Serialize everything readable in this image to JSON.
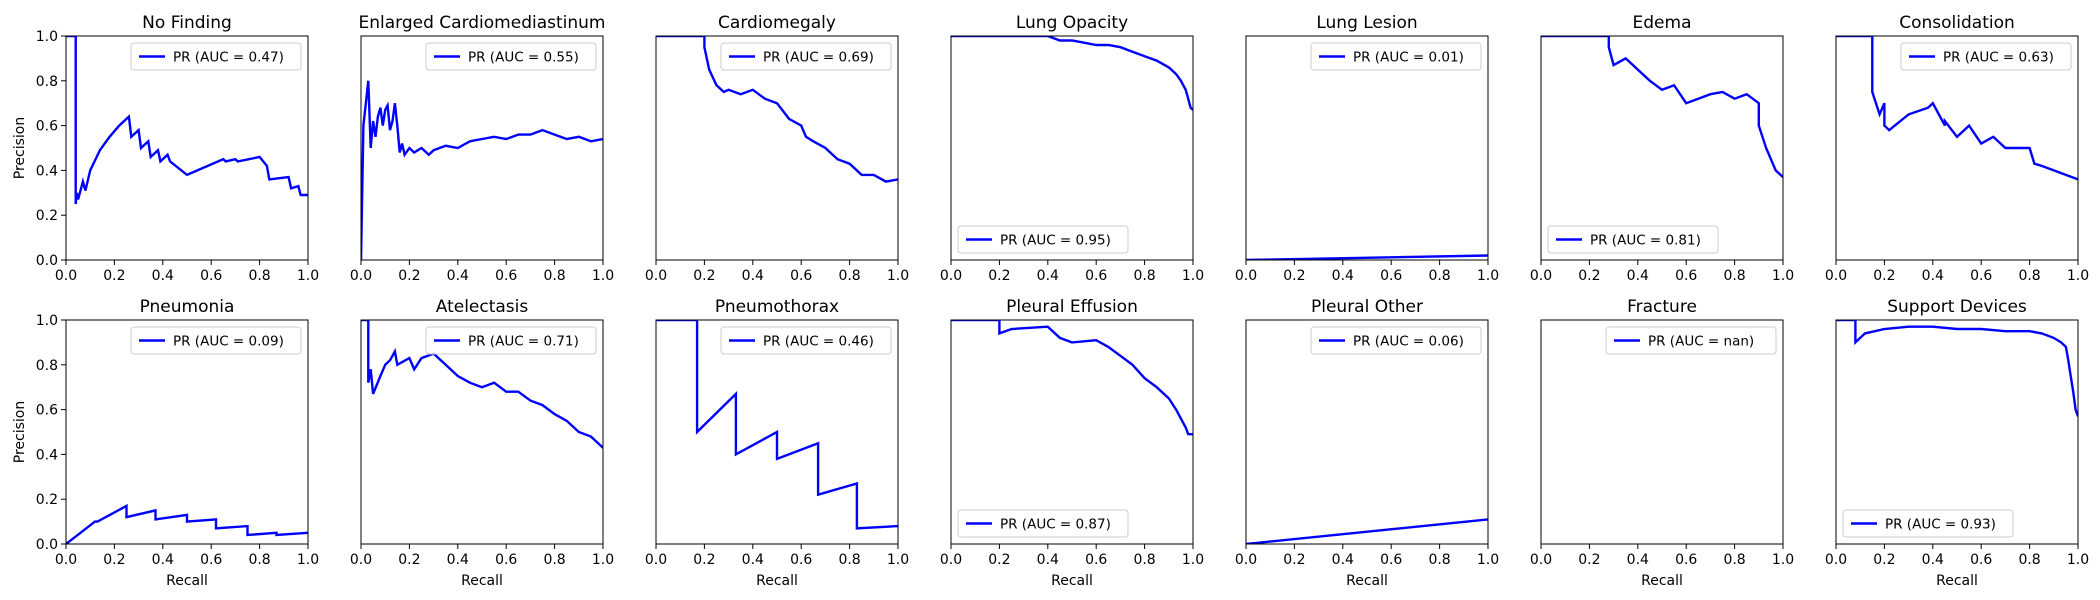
{
  "figure": {
    "background": "#ffffff",
    "line_color": "#0000ff"
  },
  "chart_data": [
    {
      "type": "line",
      "title": "No Finding",
      "xlabel": "",
      "ylabel": "Precision",
      "xlim": [
        0,
        1
      ],
      "ylim": [
        0,
        1
      ],
      "xticks": [
        "0.0",
        "0.2",
        "0.4",
        "0.6",
        "0.8",
        "1.0"
      ],
      "yticks": [
        "0.0",
        "0.2",
        "0.4",
        "0.6",
        "0.8",
        "1.0"
      ],
      "legend": {
        "label": "PR (AUC = 0.47)",
        "position": "upper right"
      },
      "series": [
        {
          "x": [
            0.0,
            0.04,
            0.04,
            0.045,
            0.05,
            0.07,
            0.08,
            0.1,
            0.14,
            0.18,
            0.22,
            0.26,
            0.27,
            0.3,
            0.31,
            0.34,
            0.35,
            0.38,
            0.39,
            0.42,
            0.43,
            0.5,
            0.5,
            0.65,
            0.66,
            0.7,
            0.71,
            0.8,
            0.83,
            0.84,
            0.92,
            0.93,
            0.96,
            0.97,
            1.0
          ],
          "y": [
            1.0,
            1.0,
            0.25,
            0.3,
            0.27,
            0.35,
            0.31,
            0.4,
            0.49,
            0.55,
            0.6,
            0.64,
            0.55,
            0.58,
            0.5,
            0.53,
            0.46,
            0.49,
            0.44,
            0.47,
            0.44,
            0.38,
            0.38,
            0.45,
            0.44,
            0.45,
            0.44,
            0.46,
            0.42,
            0.36,
            0.37,
            0.32,
            0.33,
            0.29,
            0.29
          ]
        }
      ]
    },
    {
      "type": "line",
      "title": "Enlarged Cardiomediastinum",
      "xlabel": "",
      "ylabel": "",
      "xlim": [
        0,
        1
      ],
      "ylim": [
        0,
        1
      ],
      "xticks": [
        "0.0",
        "0.2",
        "0.4",
        "0.6",
        "0.8",
        "1.0"
      ],
      "yticks": [],
      "legend": {
        "label": "PR (AUC = 0.55)",
        "position": "upper right"
      },
      "series": [
        {
          "x": [
            0.0,
            0.01,
            0.03,
            0.04,
            0.05,
            0.06,
            0.07,
            0.08,
            0.09,
            0.1,
            0.11,
            0.12,
            0.13,
            0.14,
            0.15,
            0.16,
            0.17,
            0.18,
            0.2,
            0.22,
            0.25,
            0.28,
            0.3,
            0.35,
            0.4,
            0.45,
            0.5,
            0.55,
            0.6,
            0.65,
            0.7,
            0.75,
            0.8,
            0.85,
            0.9,
            0.95,
            1.0
          ],
          "y": [
            0.0,
            0.6,
            0.8,
            0.5,
            0.62,
            0.55,
            0.64,
            0.68,
            0.6,
            0.67,
            0.69,
            0.58,
            0.62,
            0.7,
            0.6,
            0.48,
            0.52,
            0.47,
            0.5,
            0.48,
            0.5,
            0.47,
            0.49,
            0.51,
            0.5,
            0.53,
            0.54,
            0.55,
            0.54,
            0.56,
            0.56,
            0.58,
            0.56,
            0.54,
            0.55,
            0.53,
            0.54
          ]
        }
      ]
    },
    {
      "type": "line",
      "title": "Cardiomegaly",
      "xlabel": "",
      "ylabel": "",
      "xlim": [
        0,
        1
      ],
      "ylim": [
        0,
        1
      ],
      "xticks": [
        "0.0",
        "0.2",
        "0.4",
        "0.6",
        "0.8",
        "1.0"
      ],
      "yticks": [],
      "legend": {
        "label": "PR (AUC = 0.69)",
        "position": "upper right"
      },
      "series": [
        {
          "x": [
            0.0,
            0.2,
            0.2,
            0.22,
            0.25,
            0.28,
            0.3,
            0.35,
            0.4,
            0.45,
            0.5,
            0.55,
            0.6,
            0.62,
            0.65,
            0.7,
            0.75,
            0.8,
            0.85,
            0.9,
            0.95,
            1.0
          ],
          "y": [
            1.0,
            1.0,
            0.95,
            0.85,
            0.78,
            0.75,
            0.76,
            0.74,
            0.76,
            0.72,
            0.7,
            0.63,
            0.6,
            0.55,
            0.53,
            0.5,
            0.45,
            0.43,
            0.38,
            0.38,
            0.35,
            0.36
          ]
        }
      ]
    },
    {
      "type": "line",
      "title": "Lung Opacity",
      "xlabel": "",
      "ylabel": "",
      "xlim": [
        0,
        1
      ],
      "ylim": [
        0,
        1
      ],
      "xticks": [
        "0.0",
        "0.2",
        "0.4",
        "0.6",
        "0.8",
        "1.0"
      ],
      "yticks": [],
      "legend": {
        "label": "PR (AUC = 0.95)",
        "position": "lower left"
      },
      "series": [
        {
          "x": [
            0.0,
            0.4,
            0.45,
            0.5,
            0.55,
            0.6,
            0.65,
            0.7,
            0.75,
            0.8,
            0.85,
            0.9,
            0.93,
            0.95,
            0.97,
            0.98,
            0.99,
            1.0
          ],
          "y": [
            1.0,
            1.0,
            0.98,
            0.98,
            0.97,
            0.96,
            0.96,
            0.95,
            0.93,
            0.91,
            0.89,
            0.86,
            0.83,
            0.8,
            0.76,
            0.72,
            0.68,
            0.67
          ]
        }
      ]
    },
    {
      "type": "line",
      "title": "Lung Lesion",
      "xlabel": "",
      "ylabel": "",
      "xlim": [
        0,
        1
      ],
      "ylim": [
        0,
        1
      ],
      "xticks": [
        "0.0",
        "0.2",
        "0.4",
        "0.6",
        "0.8",
        "1.0"
      ],
      "yticks": [],
      "legend": {
        "label": "PR (AUC = 0.01)",
        "position": "upper right"
      },
      "series": [
        {
          "x": [
            0.0,
            1.0
          ],
          "y": [
            0.0,
            0.02
          ]
        }
      ]
    },
    {
      "type": "line",
      "title": "Edema",
      "xlabel": "",
      "ylabel": "",
      "xlim": [
        0,
        1
      ],
      "ylim": [
        0,
        1
      ],
      "xticks": [
        "0.0",
        "0.2",
        "0.4",
        "0.6",
        "0.8",
        "1.0"
      ],
      "yticks": [],
      "legend": {
        "label": "PR (AUC = 0.81)",
        "position": "lower left"
      },
      "series": [
        {
          "x": [
            0.0,
            0.28,
            0.28,
            0.3,
            0.35,
            0.4,
            0.45,
            0.5,
            0.55,
            0.6,
            0.65,
            0.7,
            0.75,
            0.8,
            0.85,
            0.9,
            0.9,
            0.93,
            0.95,
            0.97,
            1.0
          ],
          "y": [
            1.0,
            1.0,
            0.95,
            0.87,
            0.9,
            0.85,
            0.8,
            0.76,
            0.78,
            0.7,
            0.72,
            0.74,
            0.75,
            0.72,
            0.74,
            0.7,
            0.6,
            0.5,
            0.45,
            0.4,
            0.37
          ]
        }
      ]
    },
    {
      "type": "line",
      "title": "Consolidation",
      "xlabel": "",
      "ylabel": "",
      "xlim": [
        0,
        1
      ],
      "ylim": [
        0,
        1
      ],
      "xticks": [
        "0.0",
        "0.2",
        "0.4",
        "0.6",
        "0.8",
        "1.0"
      ],
      "yticks": [],
      "legend": {
        "label": "PR (AUC = 0.63)",
        "position": "upper right"
      },
      "series": [
        {
          "x": [
            0.0,
            0.15,
            0.15,
            0.18,
            0.2,
            0.2,
            0.22,
            0.3,
            0.38,
            0.4,
            0.45,
            0.45,
            0.5,
            0.55,
            0.6,
            0.65,
            0.7,
            0.8,
            0.82,
            0.85,
            0.9,
            0.95,
            1.0
          ],
          "y": [
            1.0,
            1.0,
            0.75,
            0.65,
            0.7,
            0.6,
            0.58,
            0.65,
            0.68,
            0.7,
            0.6,
            0.62,
            0.55,
            0.6,
            0.52,
            0.55,
            0.5,
            0.5,
            0.43,
            0.42,
            0.4,
            0.38,
            0.36
          ]
        }
      ]
    },
    {
      "type": "line",
      "title": "Pneumonia",
      "xlabel": "Recall",
      "ylabel": "Precision",
      "xlim": [
        0,
        1
      ],
      "ylim": [
        0,
        1
      ],
      "xticks": [
        "0.0",
        "0.2",
        "0.4",
        "0.6",
        "0.8",
        "1.0"
      ],
      "yticks": [
        "0.0",
        "0.2",
        "0.4",
        "0.6",
        "0.8",
        "1.0"
      ],
      "legend": {
        "label": "PR (AUC = 0.09)",
        "position": "upper right"
      },
      "series": [
        {
          "x": [
            0.0,
            0.12,
            0.13,
            0.25,
            0.25,
            0.37,
            0.37,
            0.5,
            0.5,
            0.62,
            0.62,
            0.75,
            0.75,
            0.87,
            0.87,
            1.0
          ],
          "y": [
            0.0,
            0.1,
            0.1,
            0.17,
            0.12,
            0.15,
            0.11,
            0.13,
            0.1,
            0.11,
            0.07,
            0.08,
            0.04,
            0.05,
            0.04,
            0.05
          ]
        }
      ]
    },
    {
      "type": "line",
      "title": "Atelectasis",
      "xlabel": "Recall",
      "ylabel": "",
      "xlim": [
        0,
        1
      ],
      "ylim": [
        0,
        1
      ],
      "xticks": [
        "0.0",
        "0.2",
        "0.4",
        "0.6",
        "0.8",
        "1.0"
      ],
      "yticks": [],
      "legend": {
        "label": "PR (AUC = 0.71)",
        "position": "upper right"
      },
      "series": [
        {
          "x": [
            0.0,
            0.03,
            0.03,
            0.04,
            0.05,
            0.08,
            0.1,
            0.12,
            0.14,
            0.15,
            0.2,
            0.22,
            0.25,
            0.3,
            0.35,
            0.4,
            0.45,
            0.5,
            0.55,
            0.6,
            0.65,
            0.7,
            0.75,
            0.8,
            0.85,
            0.9,
            0.95,
            1.0
          ],
          "y": [
            1.0,
            1.0,
            0.72,
            0.78,
            0.67,
            0.75,
            0.8,
            0.82,
            0.86,
            0.8,
            0.83,
            0.78,
            0.83,
            0.85,
            0.8,
            0.75,
            0.72,
            0.7,
            0.72,
            0.68,
            0.68,
            0.64,
            0.62,
            0.58,
            0.55,
            0.5,
            0.48,
            0.43
          ]
        }
      ]
    },
    {
      "type": "line",
      "title": "Pneumothorax",
      "xlabel": "Recall",
      "ylabel": "",
      "xlim": [
        0,
        1
      ],
      "ylim": [
        0,
        1
      ],
      "xticks": [
        "0.0",
        "0.2",
        "0.4",
        "0.6",
        "0.8",
        "1.0"
      ],
      "yticks": [],
      "legend": {
        "label": "PR (AUC = 0.46)",
        "position": "upper right"
      },
      "series": [
        {
          "x": [
            0.0,
            0.17,
            0.17,
            0.33,
            0.33,
            0.5,
            0.5,
            0.67,
            0.67,
            0.83,
            0.83,
            1.0
          ],
          "y": [
            1.0,
            1.0,
            0.5,
            0.67,
            0.4,
            0.5,
            0.38,
            0.45,
            0.22,
            0.27,
            0.07,
            0.08
          ]
        }
      ]
    },
    {
      "type": "line",
      "title": "Pleural Effusion",
      "xlabel": "Recall",
      "ylabel": "",
      "xlim": [
        0,
        1
      ],
      "ylim": [
        0,
        1
      ],
      "xticks": [
        "0.0",
        "0.2",
        "0.4",
        "0.6",
        "0.8",
        "1.0"
      ],
      "yticks": [],
      "legend": {
        "label": "PR (AUC = 0.87)",
        "position": "lower left"
      },
      "series": [
        {
          "x": [
            0.0,
            0.2,
            0.2,
            0.25,
            0.4,
            0.45,
            0.5,
            0.6,
            0.65,
            0.7,
            0.75,
            0.8,
            0.85,
            0.9,
            0.93,
            0.95,
            0.97,
            0.98,
            1.0
          ],
          "y": [
            1.0,
            1.0,
            0.94,
            0.96,
            0.97,
            0.92,
            0.9,
            0.91,
            0.88,
            0.84,
            0.8,
            0.74,
            0.7,
            0.65,
            0.6,
            0.56,
            0.52,
            0.49,
            0.49
          ]
        }
      ]
    },
    {
      "type": "line",
      "title": "Pleural Other",
      "xlabel": "Recall",
      "ylabel": "",
      "xlim": [
        0,
        1
      ],
      "ylim": [
        0,
        1
      ],
      "xticks": [
        "0.0",
        "0.2",
        "0.4",
        "0.6",
        "0.8",
        "1.0"
      ],
      "yticks": [],
      "legend": {
        "label": "PR (AUC = 0.06)",
        "position": "upper right"
      },
      "series": [
        {
          "x": [
            0.0,
            1.0
          ],
          "y": [
            0.0,
            0.11
          ]
        }
      ]
    },
    {
      "type": "line",
      "title": "Fracture",
      "xlabel": "Recall",
      "ylabel": "",
      "xlim": [
        0,
        1
      ],
      "ylim": [
        0,
        1
      ],
      "xticks": [
        "0.0",
        "0.2",
        "0.4",
        "0.6",
        "0.8",
        "1.0"
      ],
      "yticks": [],
      "legend": {
        "label": "PR (AUC = nan)",
        "position": "upper right"
      },
      "series": [
        {
          "x": [],
          "y": []
        }
      ]
    },
    {
      "type": "line",
      "title": "Support Devices",
      "xlabel": "Recall",
      "ylabel": "",
      "xlim": [
        0,
        1
      ],
      "ylim": [
        0,
        1
      ],
      "xticks": [
        "0.0",
        "0.2",
        "0.4",
        "0.6",
        "0.8",
        "1.0"
      ],
      "yticks": [],
      "legend": {
        "label": "PR (AUC = 0.93)",
        "position": "lower left"
      },
      "series": [
        {
          "x": [
            0.0,
            0.08,
            0.08,
            0.12,
            0.2,
            0.3,
            0.4,
            0.5,
            0.6,
            0.7,
            0.8,
            0.85,
            0.9,
            0.93,
            0.95,
            0.96,
            0.97,
            0.98,
            0.99,
            1.0
          ],
          "y": [
            1.0,
            1.0,
            0.9,
            0.94,
            0.96,
            0.97,
            0.97,
            0.96,
            0.96,
            0.95,
            0.95,
            0.94,
            0.92,
            0.9,
            0.88,
            0.82,
            0.75,
            0.68,
            0.6,
            0.57
          ]
        }
      ]
    }
  ]
}
